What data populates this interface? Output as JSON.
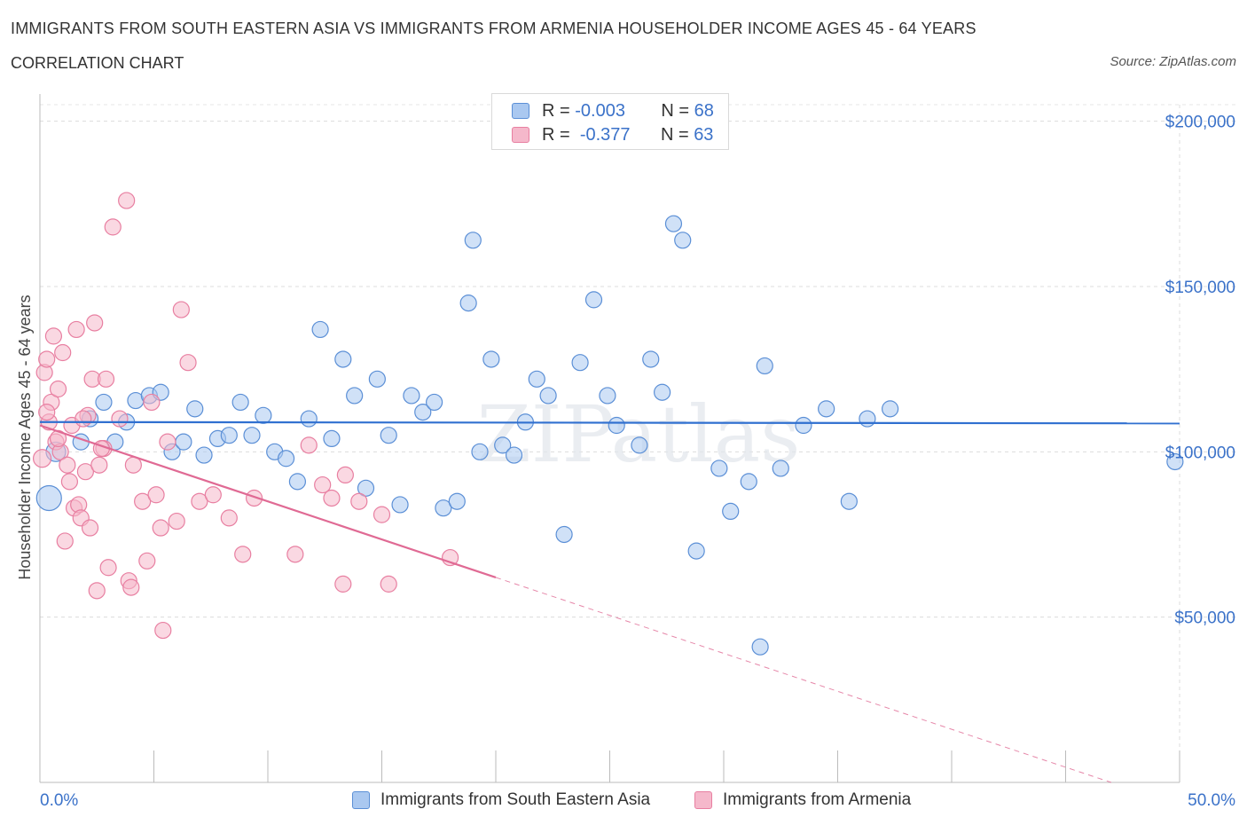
{
  "header": {
    "title": "IMMIGRANTS FROM SOUTH EASTERN ASIA VS IMMIGRANTS FROM ARMENIA HOUSEHOLDER INCOME AGES 45 - 64 YEARS",
    "subtitle": "CORRELATION CHART",
    "source": "Source: ZipAtlas.com"
  },
  "legend": {
    "rows": [
      {
        "r_label": "R =",
        "r_value": "-0.003",
        "n_label": "N =",
        "n_value": "68",
        "color": "#aac8f0"
      },
      {
        "r_label": "R =",
        "r_value": "-0.377",
        "n_label": "N =",
        "n_value": "63",
        "color": "#f5b8cb"
      }
    ]
  },
  "bottom_legend": {
    "items": [
      {
        "label": "Immigrants from South Eastern Asia",
        "color": "#aac8f0"
      },
      {
        "label": "Immigrants from Armenia",
        "color": "#f5b8cb"
      }
    ]
  },
  "chart_data": {
    "type": "scatter",
    "ylabel": "Householder Income Ages 45 - 64 years",
    "x_tick_labels": [
      "0.0%",
      "50.0%"
    ],
    "y_tick_labels": [
      "$200,000",
      "$150,000",
      "$100,000",
      "$50,000"
    ],
    "y_ticks": [
      200000,
      150000,
      100000,
      50000
    ],
    "xlim": [
      0,
      50
    ],
    "ylim": [
      0,
      205000
    ],
    "grid": true,
    "watermark": "ZIPatlas",
    "series": [
      {
        "name": "Immigrants from South Eastern Asia",
        "color": "#5b8fd6",
        "fill": "#aac8f0",
        "trend": {
          "x0": 0,
          "y0": 109000,
          "x1": 50,
          "y1": 108600,
          "style": "solid",
          "color": "#3070d0"
        },
        "points": [
          [
            0.4,
            86000,
            14
          ],
          [
            0.7,
            100000,
            11
          ],
          [
            1.8,
            103000,
            9
          ],
          [
            2.2,
            110000,
            9
          ],
          [
            2.8,
            115000,
            9
          ],
          [
            3.3,
            103000,
            9
          ],
          [
            3.8,
            109000,
            9
          ],
          [
            4.2,
            115500,
            9
          ],
          [
            4.8,
            117000,
            9
          ],
          [
            5.3,
            118000,
            9
          ],
          [
            5.8,
            100000,
            9
          ],
          [
            6.3,
            103000,
            9
          ],
          [
            6.8,
            113000,
            9
          ],
          [
            7.2,
            99000,
            9
          ],
          [
            7.8,
            104000,
            9
          ],
          [
            8.3,
            105000,
            9
          ],
          [
            8.8,
            115000,
            9
          ],
          [
            9.3,
            105000,
            9
          ],
          [
            9.8,
            111000,
            9
          ],
          [
            10.3,
            100000,
            9
          ],
          [
            10.8,
            98000,
            9
          ],
          [
            11.3,
            91000,
            9
          ],
          [
            11.8,
            110000,
            9
          ],
          [
            12.3,
            137000,
            9
          ],
          [
            12.8,
            104000,
            9
          ],
          [
            13.3,
            128000,
            9
          ],
          [
            13.8,
            117000,
            9
          ],
          [
            14.3,
            89000,
            9
          ],
          [
            14.8,
            122000,
            9
          ],
          [
            15.3,
            105000,
            9
          ],
          [
            15.8,
            84000,
            9
          ],
          [
            16.3,
            117000,
            9
          ],
          [
            16.8,
            112000,
            9
          ],
          [
            17.3,
            115000,
            9
          ],
          [
            17.7,
            83000,
            9
          ],
          [
            18.3,
            85000,
            9
          ],
          [
            18.8,
            145000,
            9
          ],
          [
            19.0,
            164000,
            9
          ],
          [
            19.3,
            100000,
            9
          ],
          [
            19.8,
            128000,
            9
          ],
          [
            20.3,
            102000,
            9
          ],
          [
            20.8,
            99000,
            9
          ],
          [
            21.3,
            109000,
            9
          ],
          [
            21.8,
            122000,
            9
          ],
          [
            22.3,
            117000,
            9
          ],
          [
            23.0,
            75000,
            9
          ],
          [
            23.7,
            127000,
            9
          ],
          [
            24.3,
            146000,
            9
          ],
          [
            24.9,
            117000,
            9
          ],
          [
            25.3,
            108000,
            9
          ],
          [
            26.3,
            102000,
            9
          ],
          [
            26.8,
            128000,
            9
          ],
          [
            27.3,
            118000,
            9
          ],
          [
            27.8,
            169000,
            9
          ],
          [
            28.2,
            164000,
            9
          ],
          [
            28.8,
            70000,
            9
          ],
          [
            29.8,
            95000,
            9
          ],
          [
            30.3,
            82000,
            9
          ],
          [
            31.1,
            91000,
            9
          ],
          [
            31.8,
            126000,
            9
          ],
          [
            32.5,
            95000,
            9
          ],
          [
            33.5,
            108000,
            9
          ],
          [
            34.5,
            113000,
            9
          ],
          [
            35.5,
            85000,
            9
          ],
          [
            36.3,
            110000,
            9
          ],
          [
            37.3,
            113000,
            9
          ],
          [
            31.6,
            41000,
            9
          ],
          [
            49.8,
            97000,
            9
          ]
        ]
      },
      {
        "name": "Immigrants from Armenia",
        "color": "#e87fa1",
        "fill": "#f5b8cb",
        "trend": {
          "x0": 0,
          "y0": 108000,
          "x1": 20,
          "y1": 62000,
          "style": "solid",
          "color": "#e06a94",
          "ext_x1": 47,
          "ext_y1": 0,
          "ext_style": "dashed"
        },
        "points": [
          [
            0.1,
            98000,
            10
          ],
          [
            0.2,
            124000,
            9
          ],
          [
            0.3,
            128000,
            9
          ],
          [
            0.4,
            109000,
            9
          ],
          [
            0.5,
            115000,
            9
          ],
          [
            0.6,
            135000,
            9
          ],
          [
            0.7,
            103000,
            9
          ],
          [
            0.8,
            119000,
            9
          ],
          [
            0.9,
            100000,
            9
          ],
          [
            1.0,
            130000,
            9
          ],
          [
            1.1,
            73000,
            9
          ],
          [
            1.2,
            96000,
            9
          ],
          [
            1.3,
            91000,
            9
          ],
          [
            1.4,
            108000,
            9
          ],
          [
            1.5,
            83000,
            9
          ],
          [
            1.6,
            137000,
            9
          ],
          [
            1.7,
            84000,
            9
          ],
          [
            1.8,
            80000,
            9
          ],
          [
            2.0,
            94000,
            9
          ],
          [
            2.1,
            111000,
            9
          ],
          [
            2.2,
            77000,
            9
          ],
          [
            2.3,
            122000,
            9
          ],
          [
            2.4,
            139000,
            9
          ],
          [
            2.5,
            58000,
            9
          ],
          [
            2.6,
            96000,
            9
          ],
          [
            2.8,
            101000,
            9
          ],
          [
            2.9,
            122000,
            9
          ],
          [
            3.0,
            65000,
            9
          ],
          [
            3.2,
            168000,
            9
          ],
          [
            3.5,
            110000,
            9
          ],
          [
            3.8,
            176000,
            9
          ],
          [
            3.9,
            61000,
            9
          ],
          [
            4.0,
            59000,
            9
          ],
          [
            4.1,
            96000,
            9
          ],
          [
            4.5,
            85000,
            9
          ],
          [
            4.7,
            67000,
            9
          ],
          [
            4.9,
            115000,
            9
          ],
          [
            5.1,
            87000,
            9
          ],
          [
            5.3,
            77000,
            9
          ],
          [
            5.4,
            46000,
            9
          ],
          [
            5.6,
            103000,
            9
          ],
          [
            6.0,
            79000,
            9
          ],
          [
            6.2,
            143000,
            9
          ],
          [
            6.5,
            127000,
            9
          ],
          [
            7.0,
            85000,
            9
          ],
          [
            7.6,
            87000,
            9
          ],
          [
            8.3,
            80000,
            9
          ],
          [
            8.9,
            69000,
            9
          ],
          [
            9.4,
            86000,
            9
          ],
          [
            11.2,
            69000,
            9
          ],
          [
            11.8,
            102000,
            9
          ],
          [
            12.4,
            90000,
            9
          ],
          [
            12.8,
            86000,
            9
          ],
          [
            13.3,
            60000,
            9
          ],
          [
            13.4,
            93000,
            9
          ],
          [
            14.0,
            85000,
            9
          ],
          [
            15.0,
            81000,
            9
          ],
          [
            15.3,
            60000,
            9
          ],
          [
            18.0,
            68000,
            9
          ],
          [
            0.8,
            104000,
            9
          ],
          [
            1.9,
            110000,
            9
          ],
          [
            0.3,
            112000,
            9
          ],
          [
            2.7,
            101000,
            9
          ]
        ]
      }
    ]
  }
}
